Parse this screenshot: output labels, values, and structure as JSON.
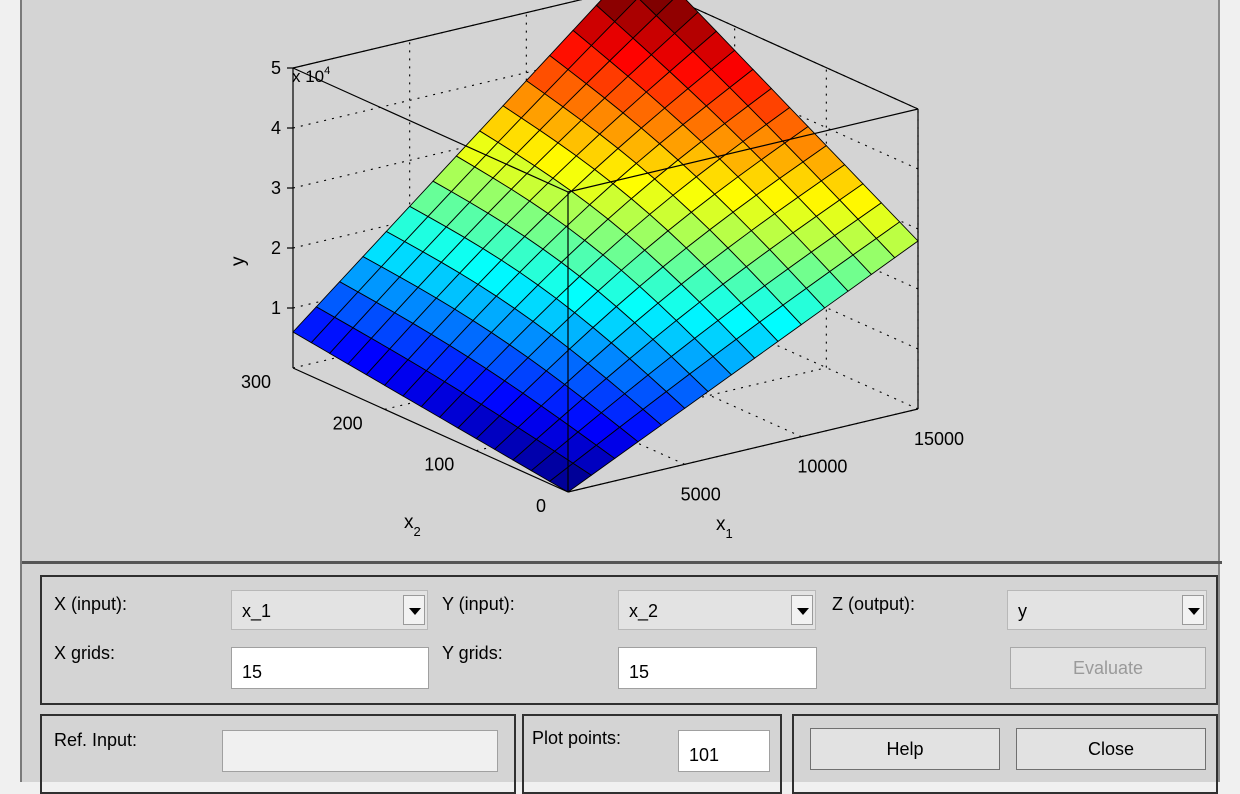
{
  "chart_data": {
    "type": "surface",
    "xlabel": "x1",
    "ylabel": "x2",
    "zlabel": "y",
    "exponent_label": "x 10",
    "exponent_power": "4",
    "x_ticks": [
      "5000",
      "10000",
      "15000"
    ],
    "y_ticks": [
      "0",
      "100",
      "200",
      "300"
    ],
    "z_ticks": [
      "1",
      "2",
      "3",
      "4",
      "5"
    ],
    "xlim": [
      0,
      15000
    ],
    "ylim": [
      0,
      300
    ],
    "zlim": [
      0,
      50000
    ],
    "grid": true,
    "grid_size": 15,
    "colormap": "jet",
    "corner_values": {
      "x1_0_x2_0": 0,
      "x1_0_x2_300": 6000,
      "x1_15000_x2_0": 28000,
      "x1_15000_x2_300": 55000
    }
  },
  "controls": {
    "x_input": {
      "label": "X (input):",
      "value": "x_1"
    },
    "y_input": {
      "label": "Y (input):",
      "value": "x_2"
    },
    "z_output": {
      "label": "Z (output):",
      "value": "y"
    },
    "x_grids": {
      "label": "X grids:",
      "value": "15"
    },
    "y_grids": {
      "label": "Y grids:",
      "value": "15"
    },
    "evaluate_label": "Evaluate",
    "ref_input": {
      "label": "Ref. Input:",
      "value": ""
    },
    "plot_points": {
      "label": "Plot points:",
      "value": "101"
    },
    "help_label": "Help",
    "close_label": "Close"
  }
}
